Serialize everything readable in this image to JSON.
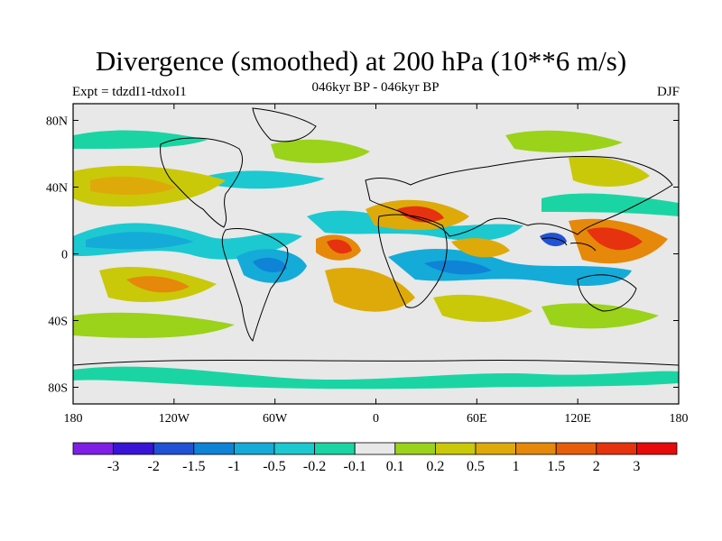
{
  "plot": {
    "title": "Divergence (smoothed) at 200 hPa (10**6 m/s)",
    "experiment": "Expt = tdzdI1-tdxoI1",
    "period": "046kyr BP - 046kyr BP",
    "season": "DJF"
  },
  "axes": {
    "lon_labels": [
      "180",
      "120W",
      "60W",
      "0",
      "60E",
      "120E",
      "180"
    ],
    "lat_labels": [
      "80N",
      "40N",
      "0",
      "40S",
      "80S"
    ]
  },
  "colorbar": {
    "labels": [
      "-3",
      "-2",
      "-1.5",
      "-1",
      "-0.5",
      "-0.2",
      "-0.1",
      "0.1",
      "0.2",
      "0.5",
      "1",
      "1.5",
      "2",
      "3"
    ],
    "colors": [
      "#7f1fe6",
      "#3a14d6",
      "#1f52d4",
      "#0f83d6",
      "#14abd9",
      "#1cc9d0",
      "#1ad5a3",
      "#e8e8e8",
      "#9bd21a",
      "#c9c90a",
      "#deaa0a",
      "#e6880a",
      "#e65e0a",
      "#e6320f",
      "#e80a0a"
    ]
  }
}
